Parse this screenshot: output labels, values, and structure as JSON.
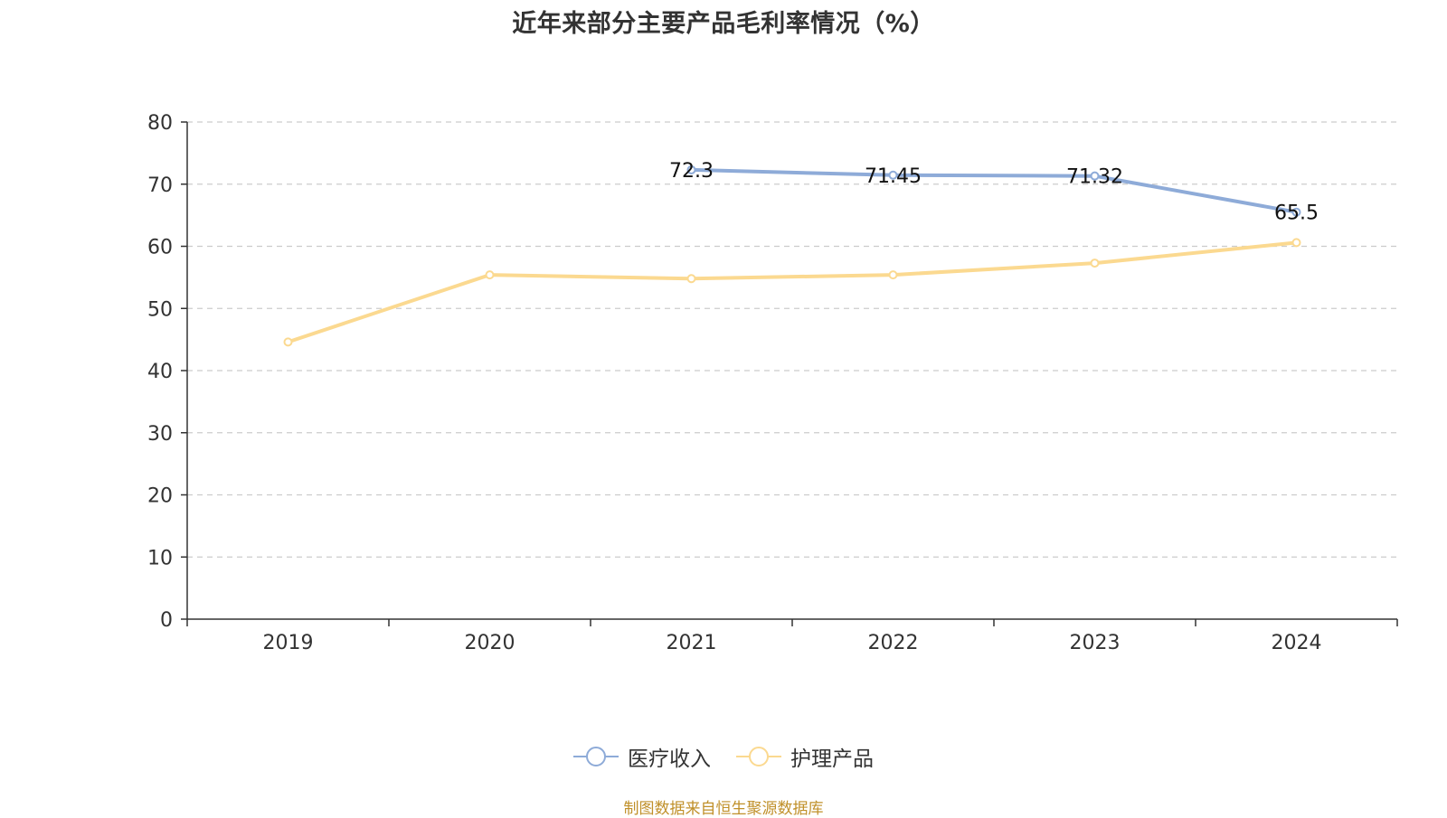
{
  "chart_data": {
    "type": "line",
    "title": "近年来部分主要产品毛利率情况（%）",
    "categories": [
      "2019",
      "2020",
      "2021",
      "2022",
      "2023",
      "2024"
    ],
    "ylim": [
      0,
      80
    ],
    "yticks": [
      0,
      10,
      20,
      30,
      40,
      50,
      60,
      70,
      80
    ],
    "grid": true,
    "legend_position": "bottom",
    "series": [
      {
        "name": "医疗收入",
        "color": "#8eabd8",
        "values": [
          null,
          null,
          72.3,
          71.45,
          71.32,
          65.5
        ],
        "labels": [
          "",
          "",
          "72.3",
          "71.45",
          "71.32",
          "65.5"
        ]
      },
      {
        "name": "护理产品",
        "color": "#fbd990",
        "values": [
          44.6,
          55.4,
          54.8,
          55.4,
          57.3,
          60.6
        ],
        "labels": [
          "",
          "",
          "",
          "",
          "",
          ""
        ]
      }
    ]
  },
  "source_text": "制图数据来自恒生聚源数据库"
}
